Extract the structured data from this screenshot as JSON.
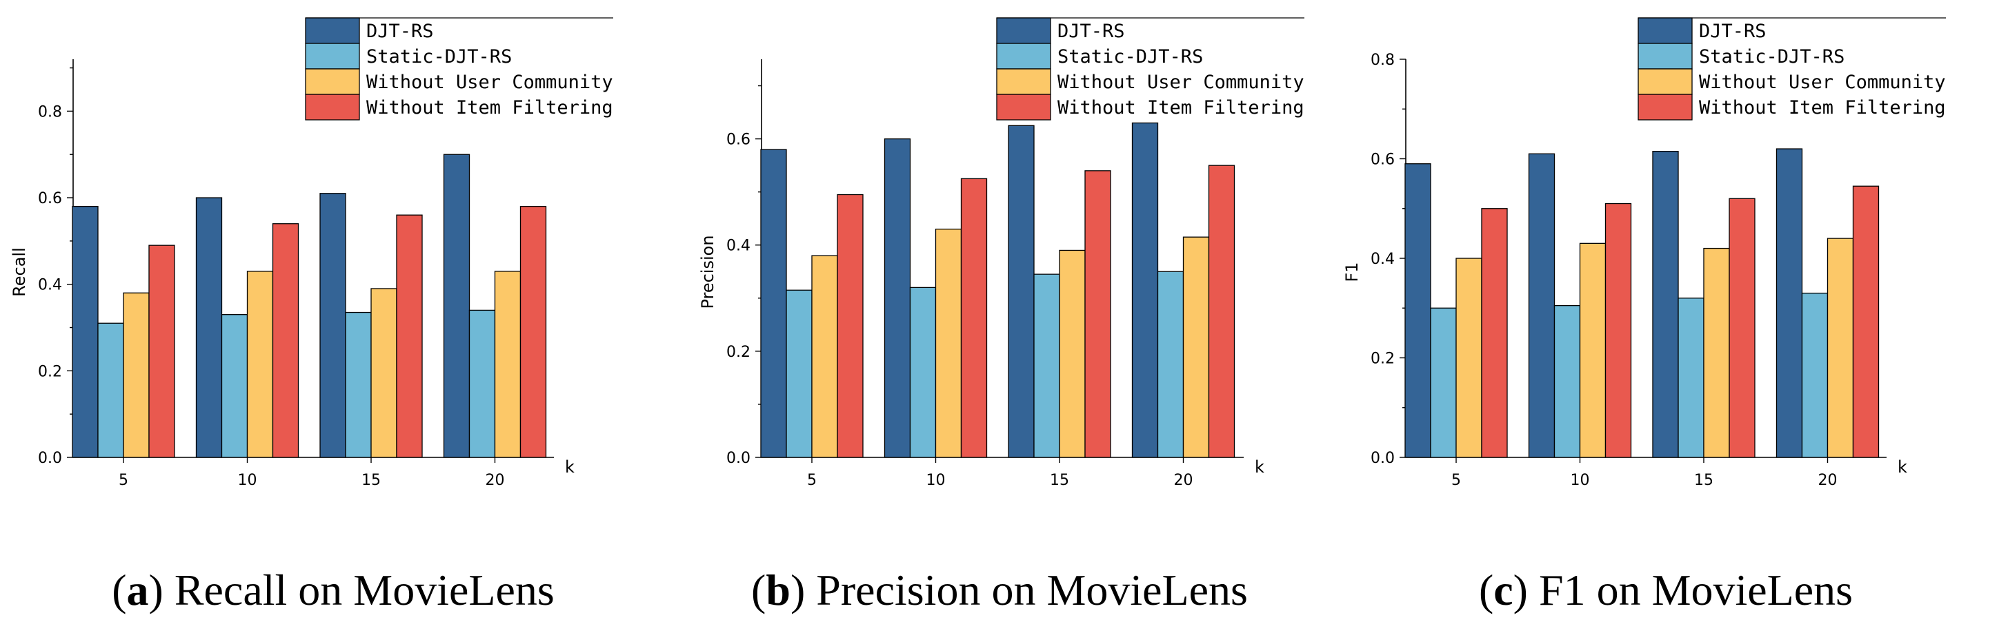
{
  "chart_data": [
    {
      "type": "bar",
      "panel_id": "a",
      "caption_letter": "a",
      "caption_text": "Recall on MovieLens",
      "xlabel": "k",
      "ylabel": "Recall",
      "categories": [
        "5",
        "10",
        "15",
        "20"
      ],
      "ylim": [
        0,
        0.92
      ],
      "yticks": [
        0.0,
        0.2,
        0.4,
        0.6,
        0.8
      ],
      "ytick_labels": [
        "0.0",
        "0.2",
        "0.4",
        "0.6",
        "0.8"
      ],
      "legend_position": "top-right",
      "series": [
        {
          "name": "DJT-RS",
          "color": "#346496",
          "values": [
            0.58,
            0.6,
            0.61,
            0.7
          ]
        },
        {
          "name": "Static-DJT-RS",
          "color": "#6fb9d6",
          "values": [
            0.31,
            0.33,
            0.335,
            0.34
          ]
        },
        {
          "name": "Without User Community",
          "color": "#fcc868",
          "values": [
            0.38,
            0.43,
            0.39,
            0.43
          ]
        },
        {
          "name": "Without Item Filtering",
          "color": "#e9594f",
          "values": [
            0.49,
            0.54,
            0.56,
            0.58
          ]
        }
      ]
    },
    {
      "type": "bar",
      "panel_id": "b",
      "caption_letter": "b",
      "caption_text": "Precision on MovieLens",
      "xlabel": "k",
      "ylabel": "Precision",
      "categories": [
        "5",
        "10",
        "15",
        "20"
      ],
      "ylim": [
        0,
        0.75
      ],
      "yticks": [
        0.0,
        0.2,
        0.4,
        0.6
      ],
      "ytick_labels": [
        "0.0",
        "0.2",
        "0.4",
        "0.6"
      ],
      "legend_position": "top-right",
      "series": [
        {
          "name": "DJT-RS",
          "color": "#346496",
          "values": [
            0.58,
            0.6,
            0.625,
            0.63
          ]
        },
        {
          "name": "Static-DJT-RS",
          "color": "#6fb9d6",
          "values": [
            0.315,
            0.32,
            0.345,
            0.35
          ]
        },
        {
          "name": "Without User Community",
          "color": "#fcc868",
          "values": [
            0.38,
            0.43,
            0.39,
            0.415
          ]
        },
        {
          "name": "Without Item Filtering",
          "color": "#e9594f",
          "values": [
            0.495,
            0.525,
            0.54,
            0.55
          ]
        }
      ]
    },
    {
      "type": "bar",
      "panel_id": "c",
      "caption_letter": "c",
      "caption_text": "F1 on MovieLens",
      "xlabel": "k",
      "ylabel": "F1",
      "categories": [
        "5",
        "10",
        "15",
        "20"
      ],
      "ylim": [
        0,
        0.8
      ],
      "yticks": [
        0.0,
        0.2,
        0.4,
        0.6,
        0.8
      ],
      "ytick_labels": [
        "0.0",
        "0.2",
        "0.4",
        "0.6",
        "0.8"
      ],
      "legend_position": "top-right",
      "series": [
        {
          "name": "DJT-RS",
          "color": "#346496",
          "values": [
            0.59,
            0.61,
            0.615,
            0.62
          ]
        },
        {
          "name": "Static-DJT-RS",
          "color": "#6fb9d6",
          "values": [
            0.3,
            0.305,
            0.32,
            0.33
          ]
        },
        {
          "name": "Without User Community",
          "color": "#fcc868",
          "values": [
            0.4,
            0.43,
            0.42,
            0.44
          ]
        },
        {
          "name": "Without Item Filtering",
          "color": "#e9594f",
          "values": [
            0.5,
            0.51,
            0.52,
            0.545
          ]
        }
      ]
    }
  ]
}
